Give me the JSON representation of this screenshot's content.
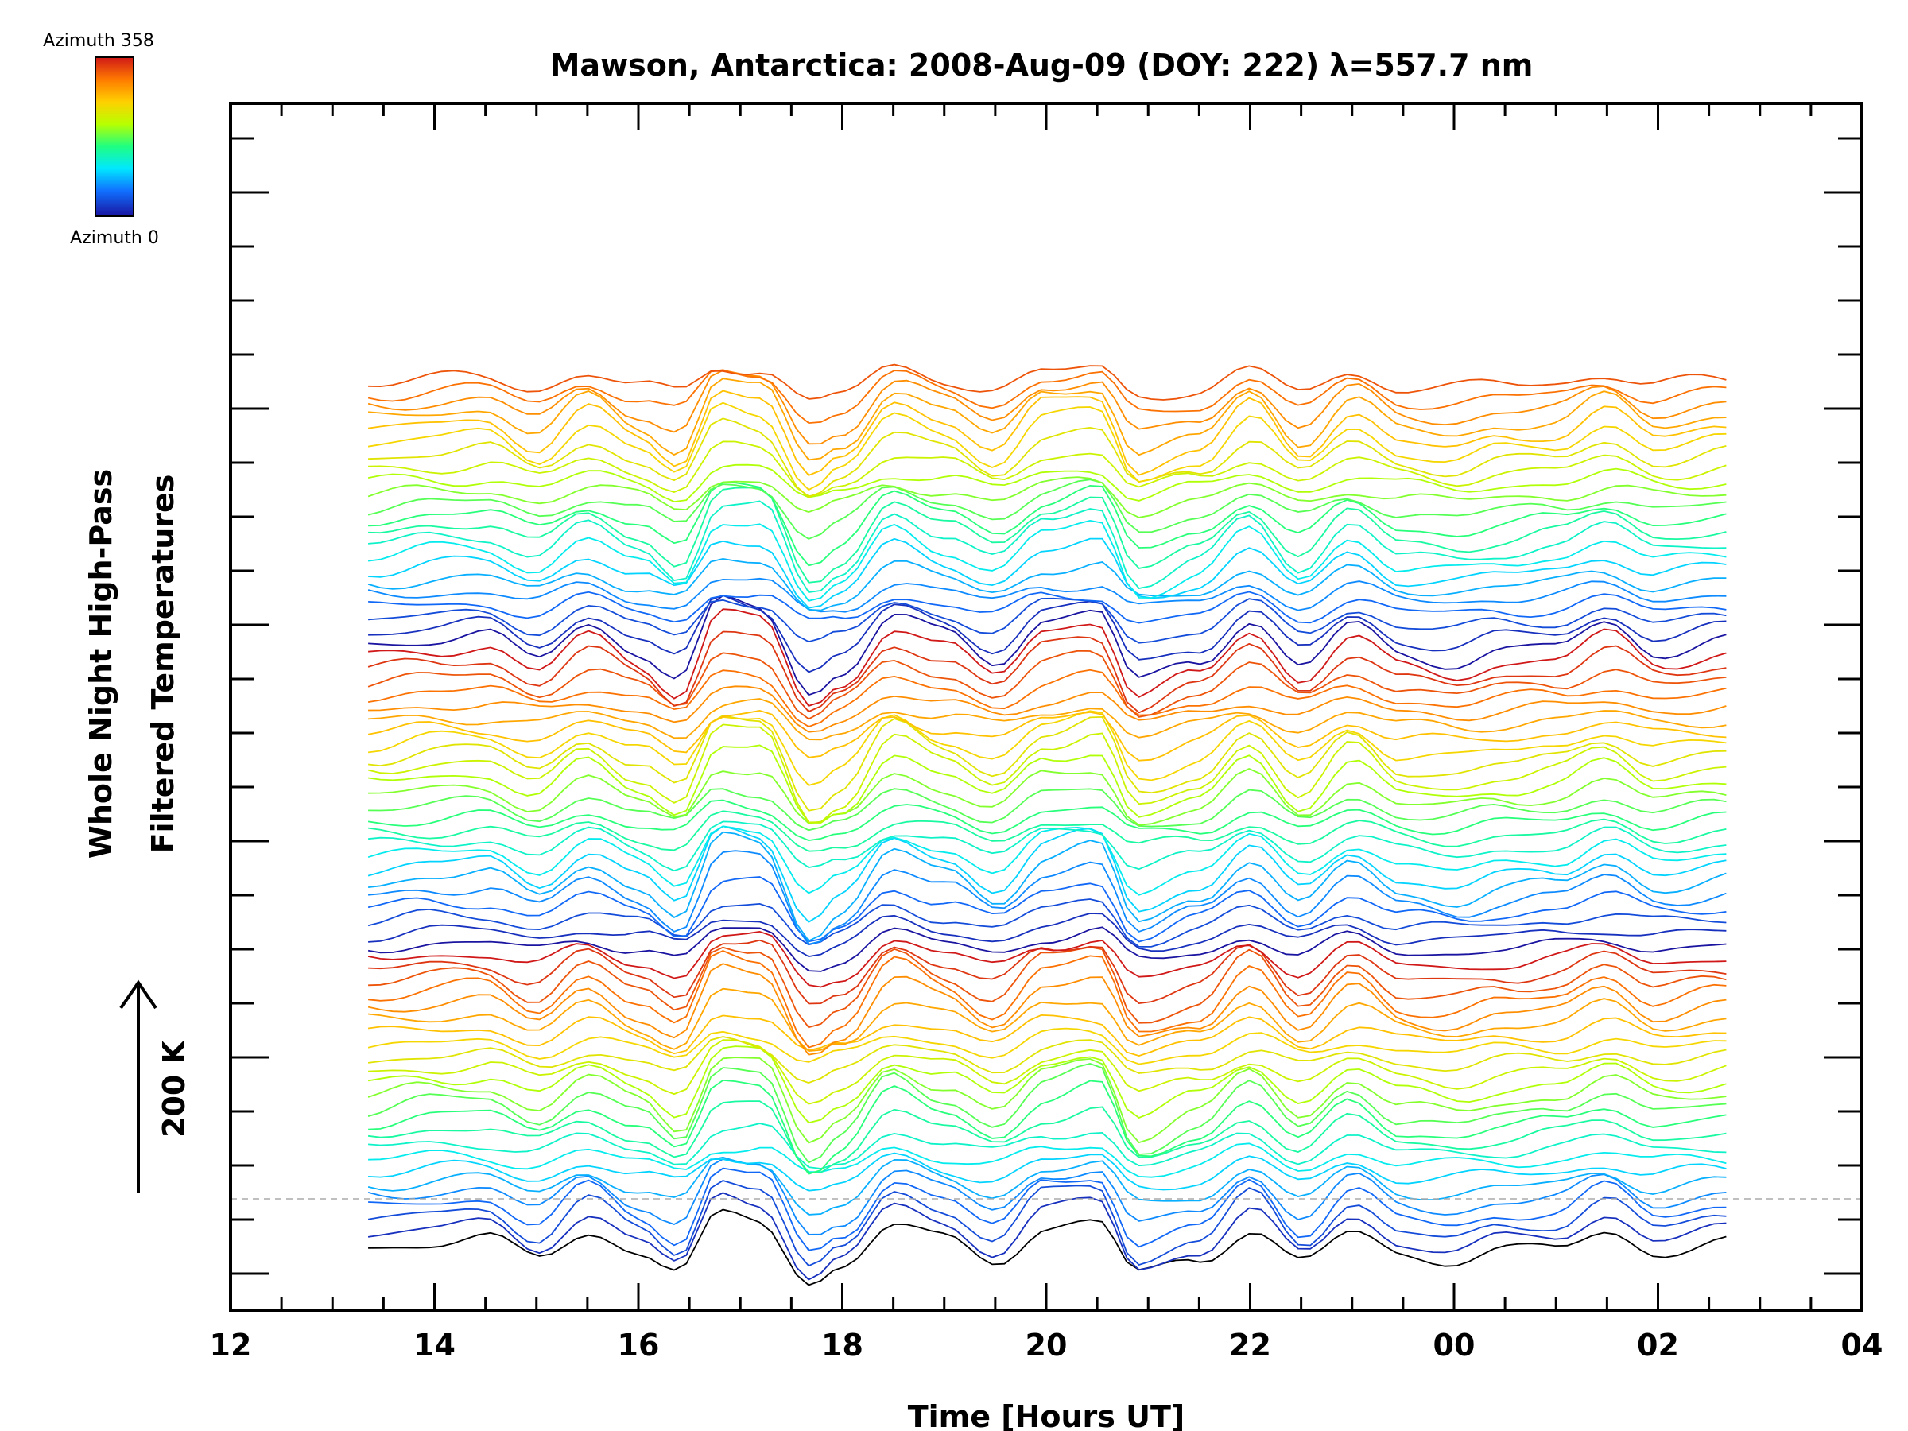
{
  "chart_data": {
    "type": "line",
    "title": "Mawson, Antarctica: 2008-Aug-09 (DOY: 222) λ=557.7 nm",
    "xlabel": "Time [Hours UT]",
    "ylabel_line1": "Whole Night High-Pass",
    "ylabel_line2": "Filtered Temperatures",
    "scale_label": "200 K",
    "colorbar": {
      "top_label": "Azimuth 358",
      "bottom_label": "Azimuth 0",
      "colors": [
        "#d01818",
        "#ff7a00",
        "#ffd000",
        "#b8ff00",
        "#20ff80",
        "#00e8ff",
        "#1070ff",
        "#1a14a0"
      ]
    },
    "x_tick_labels": [
      "12",
      "14",
      "16",
      "18",
      "20",
      "22",
      "00",
      "02",
      "04"
    ],
    "x_range_hours": [
      12,
      28
    ],
    "data_x_range_hours": [
      13.35,
      26.7
    ],
    "n_series": 70,
    "series_offset_K": 20,
    "baseline_K": 0,
    "y_range_K": [
      -100,
      1825
    ],
    "grid": false,
    "legend": "none"
  }
}
